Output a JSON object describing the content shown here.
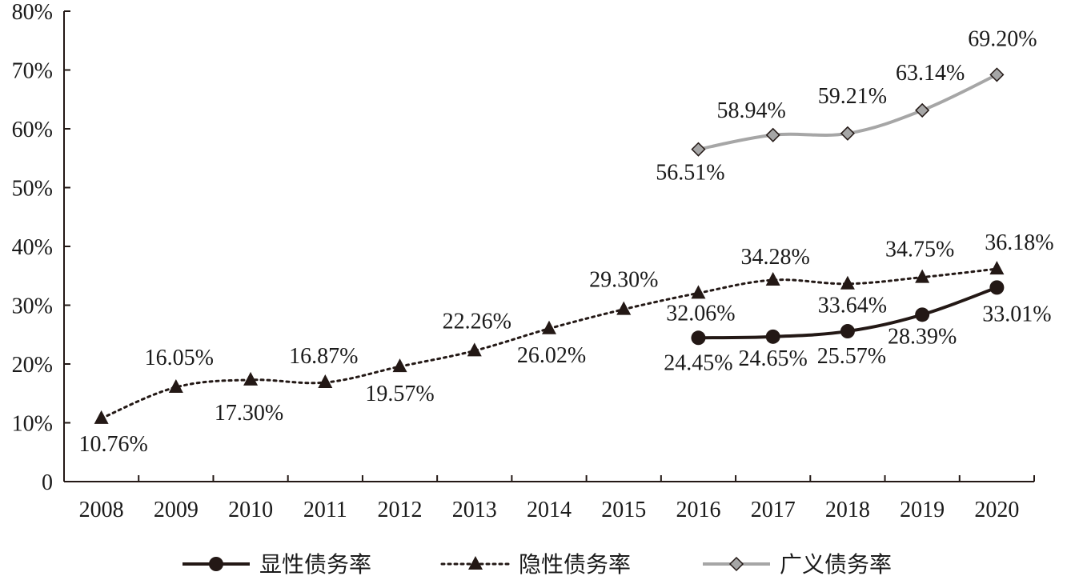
{
  "chart_data": {
    "type": "line",
    "title": "",
    "xlabel": "",
    "ylabel": "",
    "categories": [
      "2008",
      "2009",
      "2010",
      "2011",
      "2012",
      "2013",
      "2014",
      "2015",
      "2016",
      "2017",
      "2018",
      "2019",
      "2020"
    ],
    "y_tick_labels": [
      "0",
      "10%",
      "20%",
      "30%",
      "40%",
      "50%",
      "60%",
      "70%",
      "80%"
    ],
    "ylim": [
      0,
      80
    ],
    "grid": false,
    "legend_position": "bottom",
    "series": [
      {
        "name": "显性债务率",
        "style": "solid",
        "marker": "circle",
        "color": "#231815",
        "values": [
          null,
          null,
          null,
          null,
          null,
          null,
          null,
          null,
          24.45,
          24.65,
          25.57,
          28.39,
          33.01
        ],
        "labels": [
          null,
          null,
          null,
          null,
          null,
          null,
          null,
          null,
          "24.45%",
          "24.65%",
          "25.57%",
          "28.39%",
          "33.01%"
        ]
      },
      {
        "name": "隐性债务率",
        "style": "dotted",
        "marker": "triangle",
        "color": "#231815",
        "values": [
          10.76,
          16.05,
          17.3,
          16.87,
          19.57,
          22.26,
          26.02,
          29.3,
          32.06,
          34.28,
          33.64,
          34.75,
          36.18
        ],
        "labels": [
          "10.76%",
          "16.05%",
          "17.30%",
          "16.87%",
          "19.57%",
          "22.26%",
          "26.02%",
          "29.30%",
          "32.06%",
          "34.28%",
          "33.64%",
          "34.75%",
          "36.18%"
        ]
      },
      {
        "name": "广义债务率",
        "style": "solid",
        "marker": "diamond",
        "color": "#a6a6a6",
        "values": [
          null,
          null,
          null,
          null,
          null,
          null,
          null,
          null,
          56.51,
          58.94,
          59.21,
          63.14,
          69.2
        ],
        "labels": [
          null,
          null,
          null,
          null,
          null,
          null,
          null,
          null,
          "56.51%",
          "58.94%",
          "59.21%",
          "63.14%",
          "69.20%"
        ]
      }
    ]
  }
}
